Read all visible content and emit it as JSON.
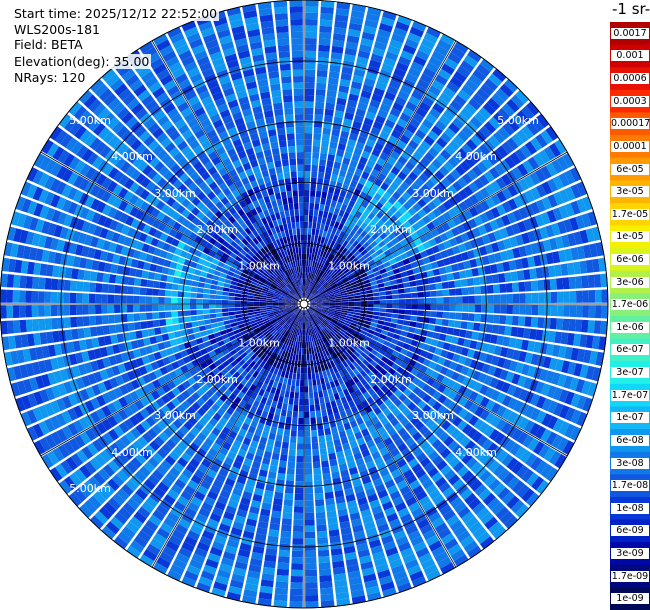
{
  "info": {
    "start_time": "Start time: 2025/12/12 22:52:00",
    "instrument": "WLS200s-181",
    "field": "Field: BETA",
    "elevation": "Elevation(deg): 35.00",
    "nrays": "NRays: 120"
  },
  "chart_data": {
    "type": "heatmap",
    "projection": "polar-ppi",
    "field": "BETA",
    "elevation_deg": 35.0,
    "n_rays": 120,
    "range_rings_km": [
      1.0,
      2.0,
      3.0,
      4.0,
      5.0
    ],
    "ring_labels": [
      "1.00km",
      "2.00km",
      "3.00km",
      "4.00km",
      "5.00km"
    ],
    "colorbar": {
      "title": "-1 sr-",
      "scale": "log",
      "labels": [
        "0.0017",
        "0.001",
        "0.0006",
        "0.0003",
        "0.00017",
        "0.0001",
        "6e-05",
        "3e-05",
        "1.7e-05",
        "1e-05",
        "6e-06",
        "3e-06",
        "1.7e-06",
        "1e-06",
        "6e-07",
        "3e-07",
        "1.7e-07",
        "1e-07",
        "6e-08",
        "3e-08",
        "1.7e-08",
        "1e-08",
        "6e-09",
        "3e-09",
        "1.7e-09",
        "1e-09"
      ],
      "colors": [
        "#b00000",
        "#d00000",
        "#e81000",
        "#ff2a00",
        "#ff5a00",
        "#ff7a00",
        "#ff9a00",
        "#ffb400",
        "#ffd400",
        "#f4f000",
        "#d8f41a",
        "#b0f048",
        "#88f078",
        "#60f0a0",
        "#40f0c8",
        "#20f0e8",
        "#10d8f8",
        "#10b8f8",
        "#1098f0",
        "#1078e8",
        "#1058e0",
        "#0838d8",
        "#0020c8",
        "#0008a8",
        "#000880",
        "#000858"
      ]
    },
    "data_range": {
      "min": 1e-09,
      "max": 1e-07
    },
    "dominant_value": 3e-08
  },
  "colors": {
    "grid": "#000000",
    "ray_gap": "#ffffff",
    "ring_label": "#ffffff"
  }
}
